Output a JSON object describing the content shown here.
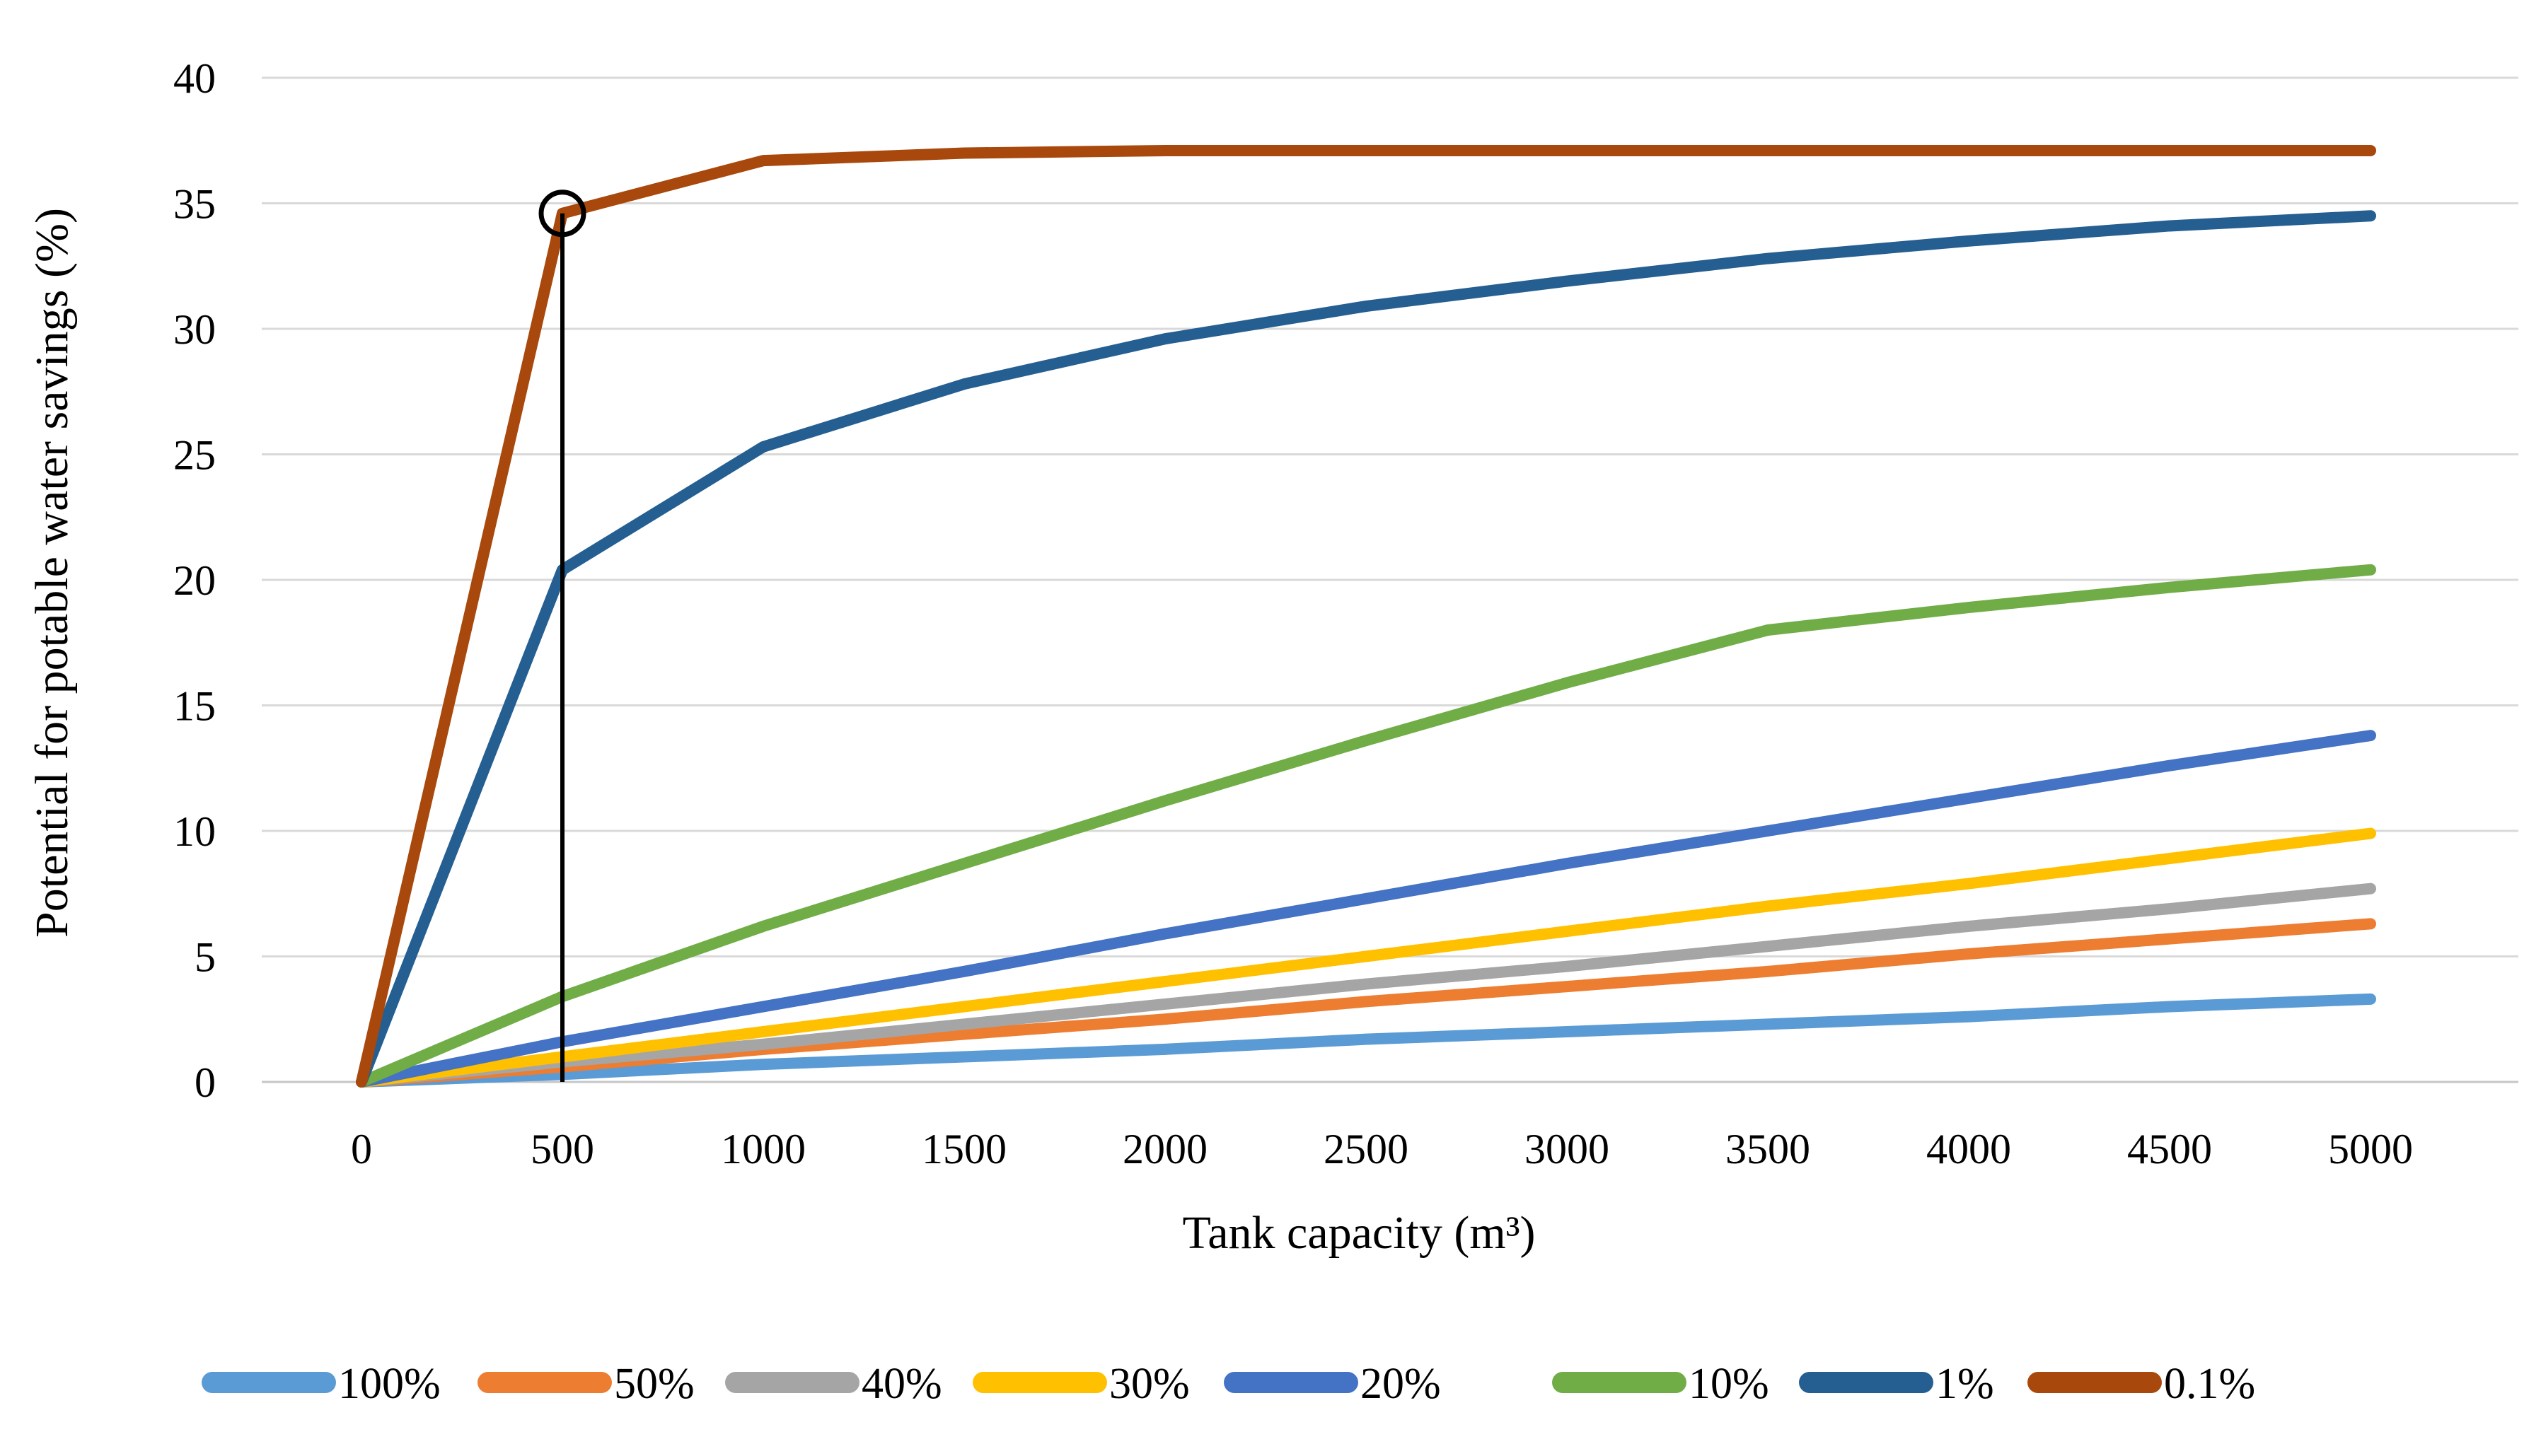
{
  "figure": {
    "y_axis_title": "Potential for potable water savings (%)",
    "x_axis_title": "Tank capacity (m³)"
  },
  "chart_data": {
    "type": "line",
    "title": "",
    "xlabel": "Tank capacity (m³)",
    "ylabel": "Potential for potable water savings (%)",
    "x": [
      0,
      500,
      1000,
      1500,
      2000,
      2500,
      3000,
      3500,
      4000,
      4500,
      5000
    ],
    "x_tick_labels": [
      "0",
      "500",
      "1000",
      "1500",
      "2000",
      "2500",
      "3000",
      "3500",
      "4000",
      "4500",
      "5000"
    ],
    "y_ticks": [
      0,
      5,
      10,
      15,
      20,
      25,
      30,
      35,
      40
    ],
    "xlim": [
      0,
      5000
    ],
    "ylim": [
      0,
      40
    ],
    "grid": "horizontal",
    "legend_position": "bottom",
    "grid_color": "#D9D9D9",
    "axis_line_color": "#C6C6C6",
    "annotation_color": "#000000",
    "series": [
      {
        "name": "100%",
        "color": "#5B9BD5",
        "values": [
          0,
          0.3,
          0.7,
          1.0,
          1.3,
          1.7,
          2.0,
          2.3,
          2.6,
          3.0,
          3.3
        ]
      },
      {
        "name": "50%",
        "color": "#ED7D31",
        "values": [
          0,
          0.6,
          1.3,
          1.9,
          2.5,
          3.2,
          3.8,
          4.4,
          5.1,
          5.7,
          6.3
        ]
      },
      {
        "name": "40%",
        "color": "#A5A5A5",
        "values": [
          0,
          0.8,
          1.5,
          2.3,
          3.1,
          3.9,
          4.6,
          5.4,
          6.2,
          6.9,
          7.7
        ]
      },
      {
        "name": "30%",
        "color": "#FFC000",
        "values": [
          0,
          1.0,
          2.0,
          3.0,
          4.0,
          5.0,
          6.0,
          7.0,
          7.9,
          8.9,
          9.9
        ]
      },
      {
        "name": "20%",
        "color": "#4472C4",
        "values": [
          0,
          1.6,
          3.0,
          4.4,
          5.9,
          7.3,
          8.7,
          10.0,
          11.3,
          12.6,
          13.8
        ]
      },
      {
        "name": "10%",
        "color": "#70AD47",
        "values": [
          0,
          3.4,
          6.2,
          8.7,
          11.2,
          13.6,
          15.9,
          18.0,
          18.9,
          19.7,
          20.4
        ]
      },
      {
        "name": "1%",
        "color": "#255E91",
        "values": [
          0,
          20.4,
          25.3,
          27.8,
          29.6,
          30.9,
          31.9,
          32.8,
          33.5,
          34.1,
          34.5
        ]
      },
      {
        "name": "0.1%",
        "color": "#A8480C",
        "values": [
          0,
          34.6,
          36.7,
          37.0,
          37.1,
          37.1,
          37.1,
          37.1,
          37.1,
          37.1,
          37.1
        ]
      }
    ],
    "annotation": {
      "shape": "vertical line with open circle marker",
      "x": 500,
      "y": 34.6
    }
  }
}
